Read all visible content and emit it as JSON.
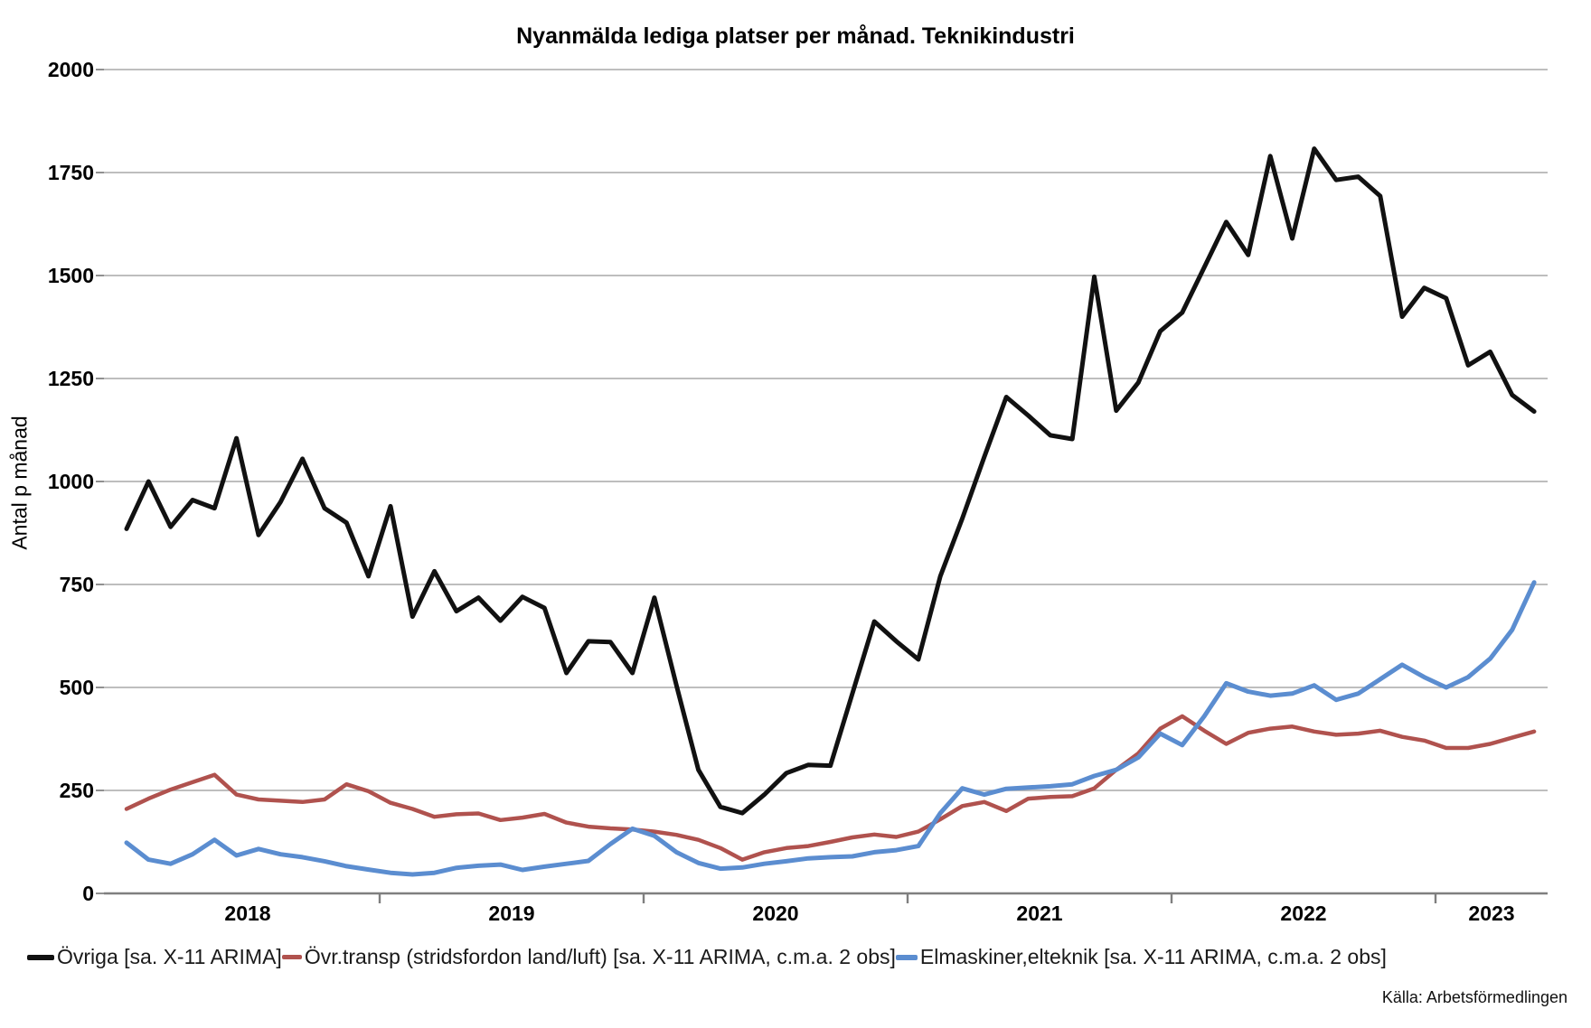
{
  "title": "Nyanmälda lediga platser per månad. Teknikindustri",
  "source": "Källa: Arbetsförmedlingen",
  "y_axis": {
    "label": "Antal p månad",
    "ticks": [
      "2000",
      "1750",
      "1500",
      "1250",
      "1000",
      "750",
      "500",
      "250",
      "0"
    ]
  },
  "x_axis": {
    "year_labels": [
      "2018",
      "2019",
      "2020",
      "2021",
      "2022",
      "2023"
    ]
  },
  "legend": [
    {
      "label": "Övriga [sa. X-11 ARIMA]",
      "color": "#111111"
    },
    {
      "label": "Övr.transp (stridsfordon land/luft) [sa. X-11 ARIMA, c.m.a. 2 obs]",
      "color": "#b0524e"
    },
    {
      "label": "Elmaskiner,elteknik [sa. X-11 ARIMA, c.m.a. 2 obs]",
      "color": "#5b8dd0"
    }
  ],
  "chart_data": {
    "type": "line",
    "x_start": "2018-01",
    "x_freq": "monthly",
    "x_end": "2023-05",
    "title": "Nyanmälda lediga platser per månad. Teknikindustri",
    "ylabel": "Antal p månad",
    "ylim": [
      0,
      2000
    ],
    "grid": true,
    "legend_position": "bottom",
    "series": [
      {
        "name": "Övriga [sa. X-11 ARIMA]",
        "color": "#111111",
        "values": [
          885,
          1000,
          890,
          955,
          935,
          1105,
          870,
          950,
          1055,
          935,
          900,
          770,
          940,
          672,
          782,
          685,
          718,
          662,
          720,
          693,
          535,
          612,
          610,
          535,
          718,
          505,
          300,
          210,
          195,
          240,
          292,
          312,
          310,
          485,
          660,
          612,
          568,
          770,
          910,
          1060,
          1205,
          1160,
          1112,
          1103,
          1497,
          1172,
          1240,
          1365,
          1410,
          1520,
          1630,
          1550,
          1790,
          1590,
          1808,
          1732,
          1740,
          1693,
          1400,
          1470,
          1445,
          1282,
          1315,
          1210,
          1170
        ]
      },
      {
        "name": "Övr.transp (stridsfordon land/luft) [sa. X-11 ARIMA, c.m.a. 2 obs]",
        "color": "#b0524e",
        "values": [
          205,
          230,
          252,
          270,
          288,
          240,
          228,
          225,
          222,
          228,
          265,
          248,
          220,
          205,
          186,
          192,
          194,
          178,
          184,
          193,
          172,
          162,
          158,
          155,
          150,
          142,
          130,
          110,
          82,
          100,
          110,
          115,
          125,
          136,
          143,
          137,
          150,
          180,
          212,
          222,
          200,
          230,
          234,
          236,
          255,
          300,
          340,
          400,
          430,
          395,
          363,
          390,
          400,
          405,
          393,
          385,
          388,
          395,
          380,
          371,
          353,
          353,
          363,
          378,
          393
        ]
      },
      {
        "name": "Elmaskiner,elteknik [sa. X-11 ARIMA, c.m.a. 2 obs]",
        "color": "#5b8dd0",
        "values": [
          123,
          82,
          72,
          95,
          130,
          92,
          108,
          95,
          88,
          78,
          66,
          58,
          50,
          46,
          50,
          62,
          67,
          70,
          57,
          65,
          72,
          79,
          120,
          157,
          140,
          100,
          74,
          60,
          63,
          72,
          78,
          85,
          88,
          90,
          100,
          105,
          115,
          195,
          255,
          240,
          254,
          257,
          260,
          265,
          285,
          300,
          330,
          388,
          360,
          430,
          510,
          490,
          480,
          485,
          505,
          470,
          485,
          520,
          555,
          525,
          500,
          525,
          570,
          640,
          755
        ]
      }
    ]
  }
}
